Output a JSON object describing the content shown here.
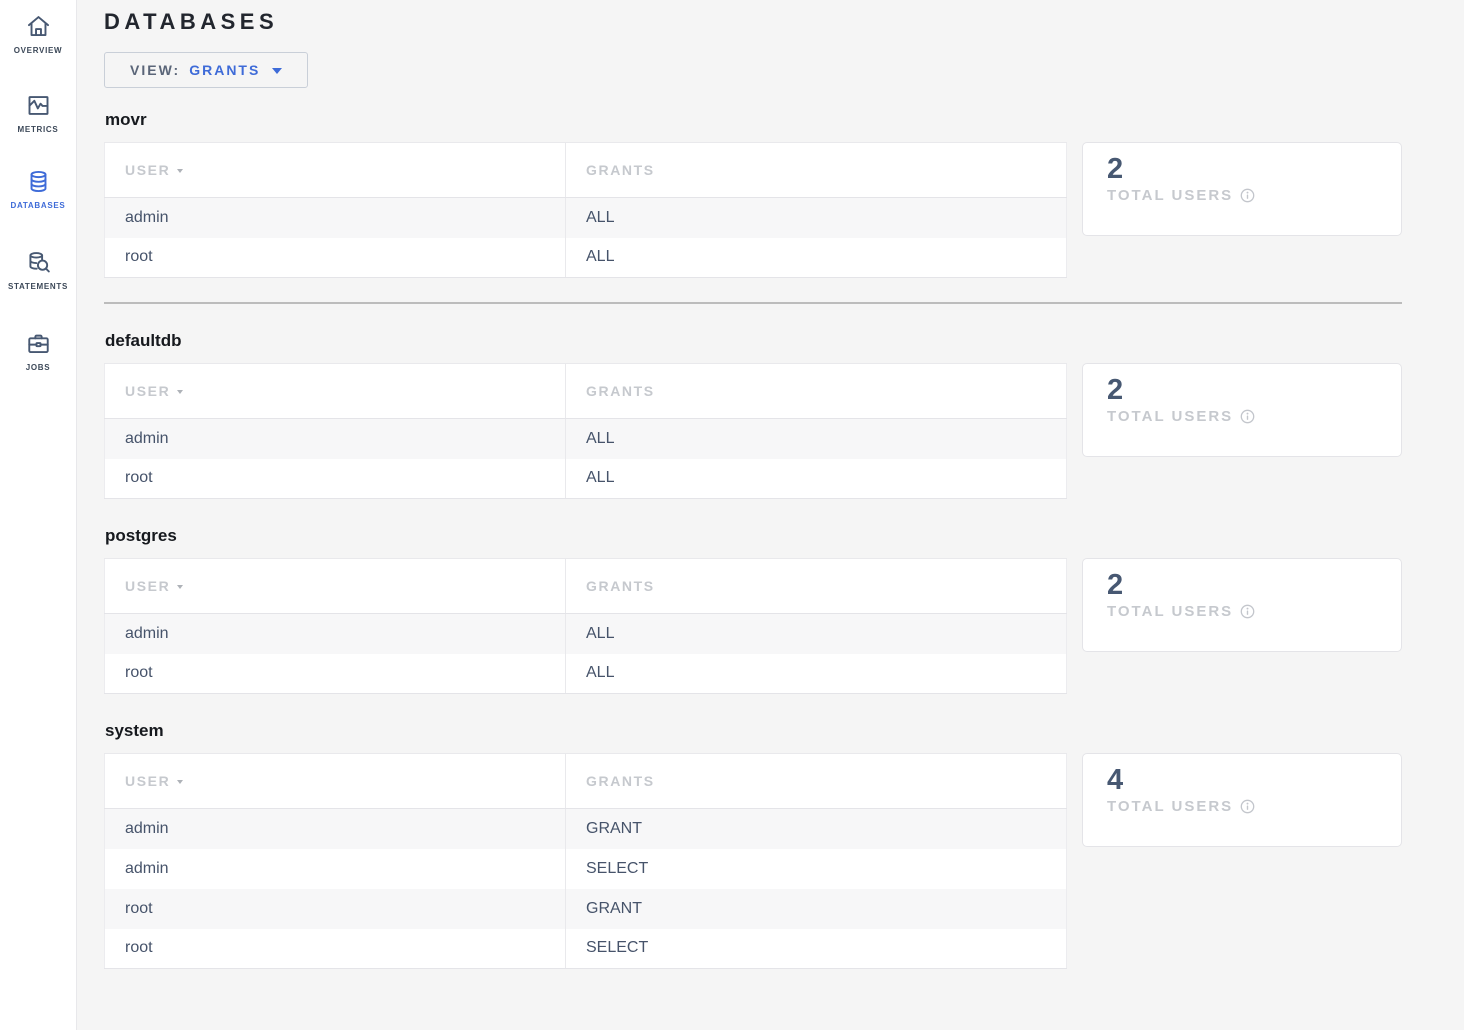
{
  "sidebar": {
    "items": [
      {
        "label": "OVERVIEW",
        "icon": "home-icon",
        "active": false
      },
      {
        "label": "METRICS",
        "icon": "metrics-icon",
        "active": false
      },
      {
        "label": "DATABASES",
        "icon": "databases-icon",
        "active": true
      },
      {
        "label": "STATEMENTS",
        "icon": "statements-icon",
        "active": false
      },
      {
        "label": "JOBS",
        "icon": "jobs-icon",
        "active": false
      }
    ]
  },
  "header": {
    "title": "DATABASES",
    "view_label": "VIEW:",
    "view_value": "GRANTS"
  },
  "table": {
    "columns": {
      "user": "USER",
      "grants": "GRANTS"
    }
  },
  "summary_label": "TOTAL USERS",
  "sections": [
    {
      "name": "movr",
      "total_users": "2",
      "divider_after": true,
      "rows": [
        {
          "user": "admin",
          "grants": "ALL"
        },
        {
          "user": "root",
          "grants": "ALL"
        }
      ]
    },
    {
      "name": "defaultdb",
      "total_users": "2",
      "divider_after": false,
      "rows": [
        {
          "user": "admin",
          "grants": "ALL"
        },
        {
          "user": "root",
          "grants": "ALL"
        }
      ]
    },
    {
      "name": "postgres",
      "total_users": "2",
      "divider_after": false,
      "rows": [
        {
          "user": "admin",
          "grants": "ALL"
        },
        {
          "user": "root",
          "grants": "ALL"
        }
      ]
    },
    {
      "name": "system",
      "total_users": "4",
      "divider_after": false,
      "rows": [
        {
          "user": "admin",
          "grants": "GRANT"
        },
        {
          "user": "admin",
          "grants": "SELECT"
        },
        {
          "user": "root",
          "grants": "GRANT"
        },
        {
          "user": "root",
          "grants": "SELECT"
        }
      ]
    }
  ],
  "colors": {
    "accent_blue": "#3e6bd8",
    "page_bg": "#f5f5f5",
    "sidebar_icon": "#475872",
    "cell_text": "#46536a",
    "muted_gray": "#c6c9ce",
    "stat_number": "#475872",
    "divider_gray": "#bcbcbc"
  }
}
